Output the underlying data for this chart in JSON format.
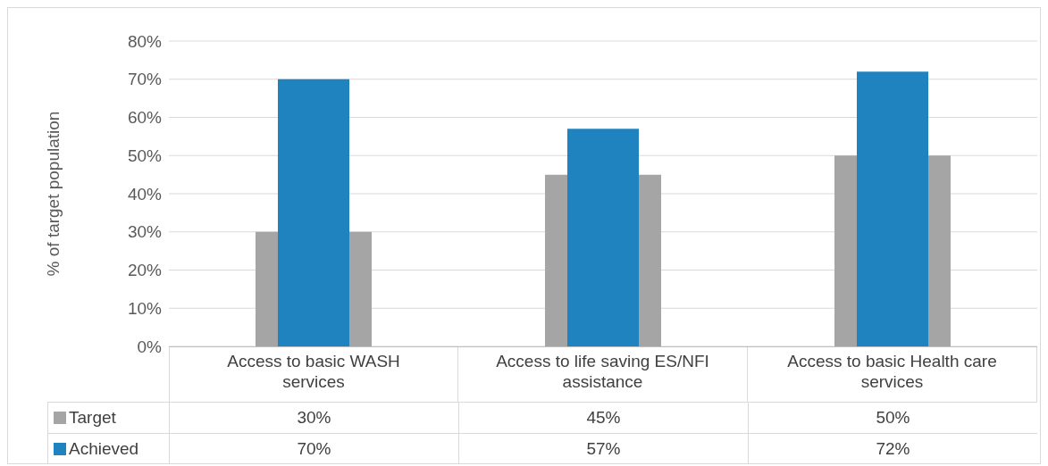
{
  "chart_data": {
    "type": "bar",
    "ylabel": "% of target population",
    "categories": [
      "Access to basic WASH services",
      "Access to life saving ES/NFI assistance",
      "Access to basic Health care services"
    ],
    "series": [
      {
        "name": "Target",
        "color": "#a5a5a5",
        "values": [
          30,
          45,
          50
        ],
        "value_labels": [
          "30%",
          "45%",
          "50%"
        ]
      },
      {
        "name": "Achieved",
        "color": "#1f83c0",
        "values": [
          70,
          57,
          72
        ],
        "value_labels": [
          "70%",
          "57%",
          "72%"
        ]
      }
    ],
    "ylim": [
      0,
      80
    ],
    "yticks": [
      {
        "value": 0,
        "label": "0%"
      },
      {
        "value": 10,
        "label": "10%"
      },
      {
        "value": 20,
        "label": "20%"
      },
      {
        "value": 30,
        "label": "30%"
      },
      {
        "value": 40,
        "label": "40%"
      },
      {
        "value": 50,
        "label": "50%"
      },
      {
        "value": 60,
        "label": "60%"
      },
      {
        "value": 70,
        "label": "70%"
      },
      {
        "value": 80,
        "label": "80%"
      }
    ],
    "grid": "y",
    "legend": "bottom"
  }
}
